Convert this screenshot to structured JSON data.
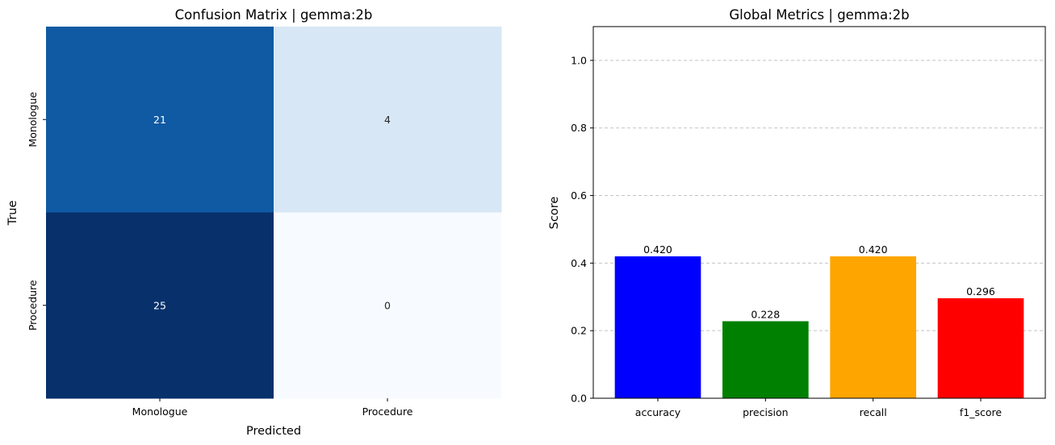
{
  "chart_data": [
    {
      "type": "heatmap",
      "title": "Confusion Matrix | gemma:2b",
      "xlabel": "Predicted",
      "ylabel": "True",
      "x_categories": [
        "Monologue",
        "Procedure"
      ],
      "y_categories": [
        "Monologue",
        "Procedure"
      ],
      "values": [
        [
          21,
          4
        ],
        [
          25,
          0
        ]
      ],
      "colormap": "Blues",
      "colorbar": false
    },
    {
      "type": "bar",
      "title": "Global Metrics | gemma:2b",
      "xlabel": "",
      "ylabel": "Score",
      "categories": [
        "accuracy",
        "precision",
        "recall",
        "f1_score"
      ],
      "values": [
        0.42,
        0.228,
        0.42,
        0.296
      ],
      "value_labels": [
        "0.420",
        "0.228",
        "0.420",
        "0.296"
      ],
      "colors": [
        "#0000ff",
        "#008000",
        "#ffa500",
        "#ff0000"
      ],
      "ylim": [
        0,
        1.1
      ],
      "yticks": [
        "0.0",
        "0.2",
        "0.4",
        "0.6",
        "0.8",
        "1.0"
      ],
      "grid": "y-dashed"
    }
  ]
}
